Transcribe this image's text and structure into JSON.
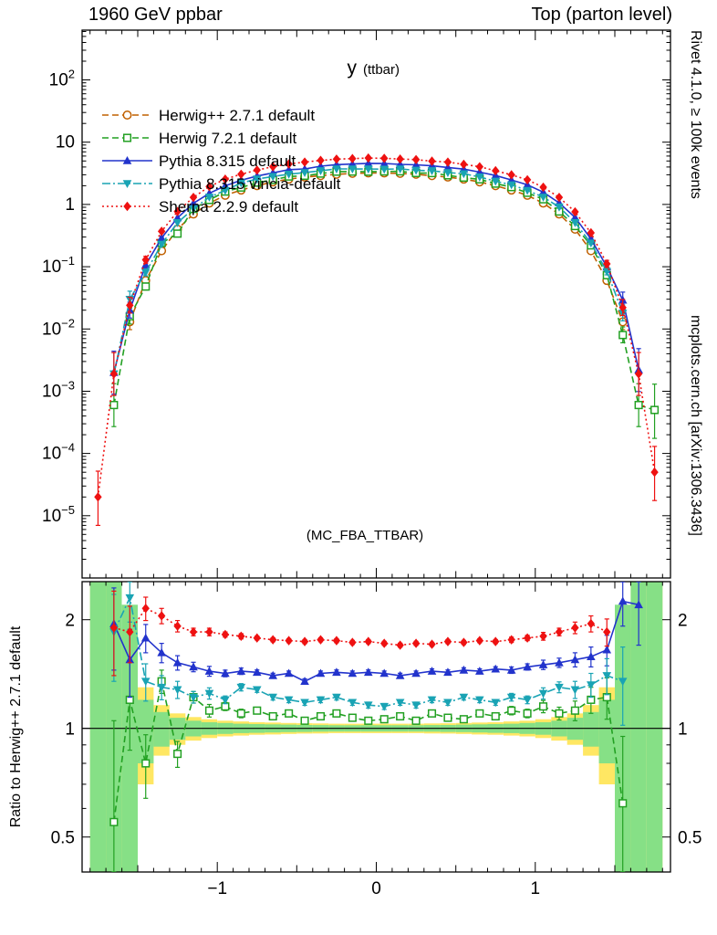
{
  "header": {
    "left": "1960 GeV ppbar",
    "right": "Top (parton level)"
  },
  "captions": {
    "rivet": "Rivet 4.1.0, ≥ 100k events",
    "mcplots": "mcplots.cern.ch [arXiv:1306.3436]"
  },
  "title": {
    "main": "y",
    "sub": "(ttbar)"
  },
  "watermark": "(MC_FBA_TTBAR)",
  "ratio_axis_label": "Ratio to Herwig++ 2.7.1 default",
  "colors": {
    "band_yellow": "#ffe763",
    "band_green": "#86e086",
    "frame": "#000000",
    "watermark_grey": "#a8a8a8",
    "caption_dark": "#444444",
    "caption_grey": "#999999"
  },
  "chart_data": {
    "type": "line",
    "title": "y (ttbar)",
    "x_axis": {
      "min": -1.85,
      "max": 1.85,
      "ticks": [
        -1,
        0,
        1
      ],
      "tick_labels": [
        "−1",
        "0",
        "1"
      ],
      "minor_step": 0.1
    },
    "main_axis": {
      "scale": "log",
      "top_exponent": 2.8,
      "bottom_exponent": -6.0,
      "ytick_exponents": [
        2,
        1,
        0,
        -1,
        -2,
        -3,
        -4,
        -5
      ]
    },
    "ratio_axis": {
      "scale": "log",
      "min": 0.4,
      "max": 2.55,
      "ticks": [
        0.5,
        1,
        2
      ],
      "tick_labels": [
        "0.5",
        "1",
        "2"
      ],
      "minor_ticks": [
        0.4,
        0.6,
        0.7,
        0.8,
        0.9
      ]
    },
    "x": [
      -1.75,
      -1.65,
      -1.55,
      -1.45,
      -1.35,
      -1.25,
      -1.15,
      -1.05,
      -0.95,
      -0.85,
      -0.75,
      -0.65,
      -0.55,
      -0.45,
      -0.35,
      -0.25,
      -0.15,
      -0.05,
      0.05,
      0.15,
      0.25,
      0.35,
      0.45,
      0.55,
      0.65,
      0.75,
      0.85,
      0.95,
      1.05,
      1.15,
      1.25,
      1.35,
      1.45,
      1.55,
      1.65,
      1.75
    ],
    "series": [
      {
        "id": "herwigpp",
        "label": "Herwig++ 2.7.1 default",
        "color": "#c06000",
        "dash": "7 4",
        "marker": "circle-open",
        "is_reference": true,
        "values": [
          null,
          null,
          0.013,
          0.06,
          0.18,
          0.4,
          0.7,
          1.05,
          1.4,
          1.7,
          2.0,
          2.3,
          2.55,
          2.75,
          2.9,
          3.05,
          3.15,
          3.2,
          3.2,
          3.15,
          3.05,
          2.9,
          2.75,
          2.55,
          2.3,
          2.0,
          1.7,
          1.4,
          1.05,
          0.7,
          0.4,
          0.18,
          0.06,
          0.013,
          null,
          null
        ],
        "ratio": null
      },
      {
        "id": "herwig721",
        "label": "Herwig 7.2.1 default",
        "color": "#22a022",
        "dash": "7 4",
        "marker": "square-open",
        "is_reference": false,
        "values": [
          null,
          0.0006,
          0.016,
          0.048,
          0.24,
          0.34,
          0.85,
          1.18,
          1.61,
          1.87,
          2.24,
          2.48,
          2.81,
          2.89,
          3.13,
          3.36,
          3.37,
          3.36,
          3.39,
          3.4,
          3.2,
          3.19,
          2.94,
          2.7,
          2.53,
          2.16,
          1.9,
          1.54,
          1.21,
          0.77,
          0.45,
          0.22,
          0.073,
          0.008,
          0.0006,
          0.0005
        ],
        "ratio": [
          null,
          0.55,
          1.2,
          0.8,
          1.35,
          0.85,
          1.22,
          1.12,
          1.15,
          1.1,
          1.12,
          1.08,
          1.1,
          1.05,
          1.08,
          1.1,
          1.07,
          1.05,
          1.06,
          1.08,
          1.05,
          1.1,
          1.07,
          1.06,
          1.1,
          1.08,
          1.12,
          1.1,
          1.15,
          1.1,
          1.12,
          1.2,
          1.22,
          0.62,
          null,
          null
        ]
      },
      {
        "id": "pythia-default",
        "label": "Pythia 8.315 default",
        "color": "#2233cc",
        "dash": "",
        "marker": "triangle-up",
        "is_reference": false,
        "values": [
          null,
          0.002,
          0.02,
          0.107,
          0.29,
          0.61,
          1.04,
          1.51,
          1.99,
          2.45,
          2.86,
          3.22,
          3.62,
          3.71,
          4.12,
          4.36,
          4.47,
          4.58,
          4.54,
          4.41,
          4.33,
          4.18,
          3.93,
          3.7,
          3.31,
          2.92,
          2.47,
          2.07,
          1.58,
          1.06,
          0.62,
          0.28,
          0.099,
          0.029,
          0.0022,
          null
        ],
        "ratio": [
          null,
          1.95,
          1.55,
          1.78,
          1.62,
          1.52,
          1.48,
          1.44,
          1.42,
          1.44,
          1.43,
          1.4,
          1.42,
          1.35,
          1.42,
          1.43,
          1.42,
          1.43,
          1.42,
          1.4,
          1.42,
          1.44,
          1.43,
          1.45,
          1.44,
          1.46,
          1.45,
          1.48,
          1.5,
          1.52,
          1.55,
          1.58,
          1.65,
          2.25,
          2.2,
          null
        ]
      },
      {
        "id": "pythia-vincia",
        "label": "Pythia 8.315 vincia-default",
        "color": "#19a3b4",
        "dash": "9 3 2 3",
        "marker": "triangle-down",
        "is_reference": false,
        "values": [
          null,
          0.0019,
          0.03,
          0.081,
          0.23,
          0.51,
          0.85,
          1.31,
          1.68,
          2.21,
          2.56,
          2.81,
          3.06,
          3.25,
          3.48,
          3.72,
          3.72,
          3.71,
          3.68,
          3.72,
          3.54,
          3.48,
          3.25,
          3.11,
          2.76,
          2.36,
          2.07,
          1.68,
          1.31,
          0.91,
          0.51,
          0.24,
          0.084,
          0.018,
          null,
          null
        ],
        "ratio": [
          null,
          1.85,
          2.3,
          1.35,
          1.3,
          1.28,
          1.22,
          1.25,
          1.2,
          1.3,
          1.28,
          1.22,
          1.2,
          1.18,
          1.2,
          1.22,
          1.18,
          1.16,
          1.15,
          1.18,
          1.16,
          1.2,
          1.18,
          1.22,
          1.2,
          1.18,
          1.22,
          1.2,
          1.25,
          1.3,
          1.28,
          1.32,
          1.4,
          1.35,
          null,
          null
        ]
      },
      {
        "id": "sherpa",
        "label": "Sherpa 2.2.9 default",
        "color": "#ee1111",
        "dash": "2 3",
        "marker": "diamond",
        "is_reference": false,
        "values": [
          2e-05,
          0.0019,
          0.024,
          0.129,
          0.37,
          0.77,
          1.3,
          1.94,
          2.55,
          3.06,
          3.56,
          4.05,
          4.46,
          4.79,
          5.1,
          5.34,
          5.45,
          5.57,
          5.5,
          5.36,
          5.25,
          4.96,
          4.79,
          4.41,
          4.03,
          3.48,
          2.99,
          2.49,
          1.89,
          1.3,
          0.76,
          0.35,
          0.111,
          0.022,
          0.0019,
          5e-05
        ],
        "ratio": [
          null,
          1.9,
          1.85,
          2.15,
          2.05,
          1.92,
          1.85,
          1.85,
          1.82,
          1.8,
          1.78,
          1.76,
          1.75,
          1.74,
          1.76,
          1.75,
          1.73,
          1.74,
          1.72,
          1.7,
          1.72,
          1.71,
          1.74,
          1.73,
          1.75,
          1.74,
          1.76,
          1.78,
          1.8,
          1.85,
          1.9,
          1.95,
          1.85,
          null,
          null,
          null
        ]
      }
    ],
    "bands": {
      "green_halfwidth": [
        2.0,
        2.0,
        1.2,
        0.2,
        0.11,
        0.07,
        0.05,
        0.04,
        0.035,
        0.03,
        0.028,
        0.026,
        0.024,
        0.022,
        0.021,
        0.02,
        0.02,
        0.02,
        0.02,
        0.02,
        0.02,
        0.021,
        0.022,
        0.024,
        0.026,
        0.028,
        0.03,
        0.035,
        0.04,
        0.05,
        0.07,
        0.11,
        0.2,
        1.2,
        2.0,
        2.0
      ],
      "yellow_halfwidth": [
        2.0,
        2.0,
        0.9,
        0.3,
        0.16,
        0.1,
        0.075,
        0.06,
        0.05,
        0.045,
        0.04,
        0.038,
        0.035,
        0.033,
        0.032,
        0.03,
        0.03,
        0.03,
        0.03,
        0.03,
        0.03,
        0.032,
        0.033,
        0.035,
        0.038,
        0.04,
        0.045,
        0.05,
        0.06,
        0.075,
        0.1,
        0.16,
        0.3,
        0.9,
        2.0,
        2.0
      ]
    }
  }
}
